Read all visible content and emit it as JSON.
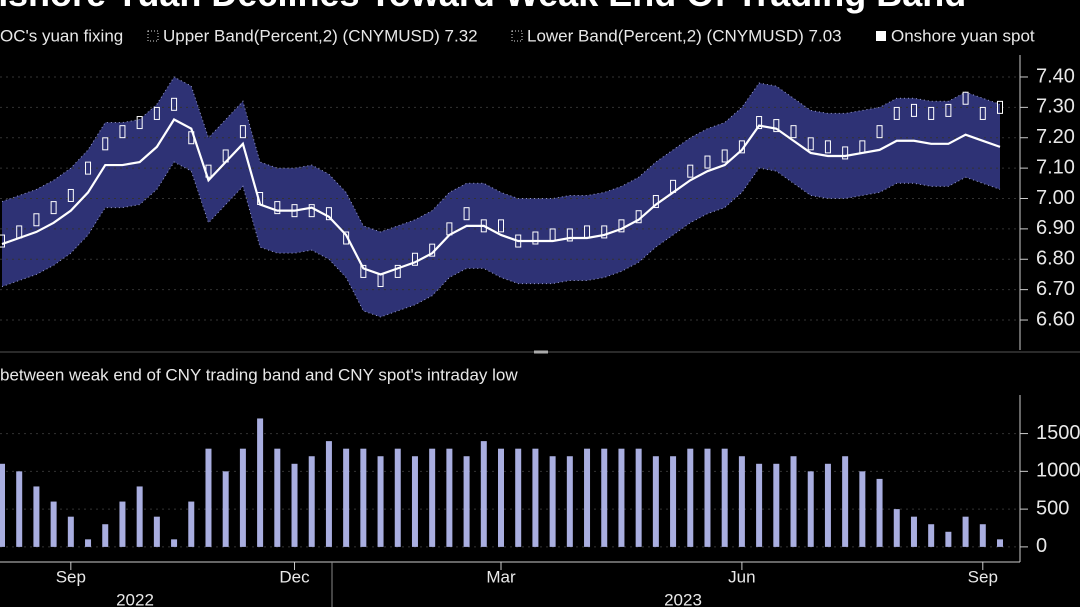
{
  "chart_data": [
    {
      "type": "line",
      "title": "nshore Yuan Declines Toward Weak End Of Trading Band",
      "band_fill": "#2e3275",
      "ylim": [
        6.5,
        7.5
      ],
      "yticks": [
        {
          "value": 6.6,
          "label": "6.60"
        },
        {
          "value": 6.7,
          "label": "6.70"
        },
        {
          "value": 6.8,
          "label": "6.80"
        },
        {
          "value": 6.9,
          "label": "6.90"
        },
        {
          "value": 7.0,
          "label": "7.00"
        },
        {
          "value": 7.1,
          "label": "7.10"
        },
        {
          "value": 7.2,
          "label": "7.20"
        },
        {
          "value": 7.3,
          "label": "7.30"
        },
        {
          "value": 7.4,
          "label": "7.40"
        }
      ],
      "series": [
        {
          "name": "OC's yuan fixing",
          "color": "#ffffff",
          "values": [
            6.85,
            6.87,
            6.89,
            6.92,
            6.96,
            7.02,
            7.11,
            7.11,
            7.12,
            7.17,
            7.26,
            7.23,
            7.06,
            7.12,
            7.18,
            6.98,
            6.96,
            6.96,
            6.97,
            6.94,
            6.88,
            6.77,
            6.75,
            6.77,
            6.79,
            6.82,
            6.88,
            6.91,
            6.91,
            6.88,
            6.86,
            6.86,
            6.86,
            6.87,
            6.87,
            6.88,
            6.9,
            6.93,
            6.98,
            7.02,
            7.06,
            7.09,
            7.11,
            7.16,
            7.24,
            7.23,
            7.19,
            7.15,
            7.14,
            7.14,
            7.15,
            7.16,
            7.19,
            7.19,
            7.18,
            7.18,
            7.21,
            7.19,
            7.17
          ]
        },
        {
          "name": "Upper Band(Percent,2) (CNYMUSD) 7.32",
          "color": "#9a9fd0",
          "values": [
            6.99,
            7.01,
            7.03,
            7.06,
            7.1,
            7.16,
            7.25,
            7.25,
            7.26,
            7.31,
            7.4,
            7.37,
            7.2,
            7.26,
            7.32,
            7.12,
            7.1,
            7.1,
            7.11,
            7.08,
            7.02,
            6.91,
            6.89,
            6.91,
            6.93,
            6.96,
            7.02,
            7.05,
            7.05,
            7.02,
            7.0,
            7.0,
            7.0,
            7.01,
            7.01,
            7.02,
            7.04,
            7.07,
            7.12,
            7.16,
            7.2,
            7.23,
            7.25,
            7.3,
            7.38,
            7.37,
            7.33,
            7.29,
            7.28,
            7.28,
            7.29,
            7.3,
            7.33,
            7.33,
            7.32,
            7.32,
            7.35,
            7.33,
            7.31
          ]
        },
        {
          "name": "Lower Band(Percent,2) (CNYMUSD) 7.03",
          "color": "#9a9fd0",
          "values": [
            6.71,
            6.73,
            6.75,
            6.78,
            6.82,
            6.88,
            6.97,
            6.97,
            6.98,
            7.03,
            7.12,
            7.09,
            6.92,
            6.98,
            7.04,
            6.84,
            6.82,
            6.82,
            6.83,
            6.8,
            6.74,
            6.63,
            6.61,
            6.63,
            6.65,
            6.68,
            6.74,
            6.77,
            6.77,
            6.74,
            6.72,
            6.72,
            6.72,
            6.73,
            6.73,
            6.74,
            6.76,
            6.79,
            6.84,
            6.88,
            6.92,
            6.95,
            6.97,
            7.02,
            7.1,
            7.09,
            7.05,
            7.01,
            7.0,
            7.0,
            7.01,
            7.02,
            7.05,
            7.05,
            7.04,
            7.04,
            7.07,
            7.05,
            7.03
          ]
        },
        {
          "name": "Onshore yuan spot",
          "color": "#ffffff",
          "values": [
            6.86,
            6.89,
            6.93,
            6.97,
            7.01,
            7.1,
            7.18,
            7.22,
            7.25,
            7.28,
            7.31,
            7.2,
            7.09,
            7.14,
            7.22,
            7.0,
            6.97,
            6.96,
            6.96,
            6.95,
            6.87,
            6.76,
            6.73,
            6.76,
            6.8,
            6.83,
            6.9,
            6.95,
            6.91,
            6.91,
            6.86,
            6.87,
            6.88,
            6.88,
            6.89,
            6.89,
            6.91,
            6.94,
            6.99,
            7.04,
            7.09,
            7.12,
            7.14,
            7.17,
            7.25,
            7.24,
            7.22,
            7.18,
            7.17,
            7.15,
            7.17,
            7.22,
            7.28,
            7.29,
            7.28,
            7.29,
            7.33,
            7.28,
            7.3
          ]
        }
      ]
    },
    {
      "type": "bar",
      "title": "between weak end of CNY trading band and CNY spot's intraday low",
      "color": "#a9aee0",
      "categories": [
        null,
        null,
        null,
        null,
        "Sep",
        null,
        null,
        null,
        null,
        null,
        null,
        null,
        null,
        null,
        null,
        null,
        null,
        "Dec",
        null,
        null,
        null,
        null,
        null,
        null,
        null,
        null,
        null,
        null,
        null,
        "Mar",
        null,
        null,
        null,
        null,
        null,
        null,
        null,
        null,
        null,
        null,
        null,
        null,
        null,
        "Jun",
        null,
        null,
        null,
        null,
        null,
        null,
        null,
        null,
        null,
        null,
        null,
        null,
        null,
        "Sep",
        null
      ],
      "year_labels": [
        "2022",
        "2023"
      ],
      "ylim": [
        -200,
        2000
      ],
      "yticks": [
        0,
        500,
        1000,
        1500
      ],
      "values": [
        1100,
        1000,
        800,
        600,
        400,
        100,
        300,
        600,
        800,
        400,
        100,
        600,
        1300,
        1000,
        1300,
        1700,
        1300,
        1100,
        1200,
        1400,
        1300,
        1300,
        1200,
        1300,
        1200,
        1300,
        1300,
        1200,
        1400,
        1300,
        1300,
        1300,
        1200,
        1200,
        1300,
        1300,
        1300,
        1300,
        1200,
        1200,
        1300,
        1300,
        1300,
        1200,
        1100,
        1100,
        1200,
        1000,
        1100,
        1200,
        1000,
        900,
        500,
        400,
        300,
        200,
        400,
        300,
        100
      ]
    }
  ]
}
